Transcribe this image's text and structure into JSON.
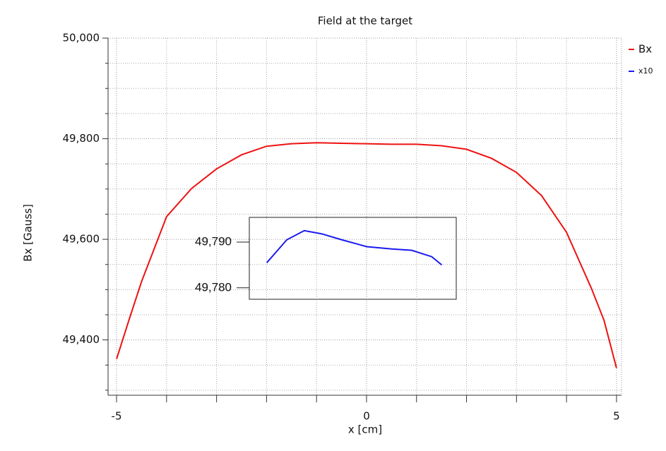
{
  "chart_data": [
    {
      "type": "line",
      "title": "Field at the target",
      "xlabel": "x [cm]",
      "ylabel": "Bx [Gauss]",
      "x": [
        -5,
        -4.75,
        -4.5,
        -4,
        -3.5,
        -3,
        -2.5,
        -2,
        -1.5,
        -1,
        -0.5,
        0,
        0.5,
        1,
        1.5,
        2,
        2.5,
        3,
        3.5,
        4,
        4.5,
        4.75,
        5
      ],
      "series": [
        {
          "name": "Bx",
          "color": "#ee1111",
          "values": [
            49362,
            49440,
            49516,
            49645,
            49701,
            49740,
            49768,
            49785,
            49790,
            49792,
            49791,
            49790,
            49789,
            49789,
            49786,
            49779,
            49761,
            49733,
            49687,
            49614,
            49502,
            49439,
            49344
          ]
        }
      ],
      "xlim": [
        -5.17,
        5.1
      ],
      "xticks": [
        -5,
        0,
        5
      ],
      "xminor": [
        -4,
        -3,
        -2,
        -1,
        1,
        2,
        3,
        4
      ],
      "ylim": [
        49290,
        50000
      ],
      "yticks": [
        {
          "value": 49400,
          "label": "49,400"
        },
        {
          "value": 49600,
          "label": "49,600"
        },
        {
          "value": 49800,
          "label": "49,800"
        },
        {
          "value": 50000,
          "label": "50,000"
        }
      ],
      "yminor": [
        49300,
        49350,
        49450,
        49500,
        49550,
        49650,
        49700,
        49750,
        49850,
        49900,
        49950
      ],
      "grid": true,
      "legend": "right"
    },
    {
      "type": "line",
      "x": [
        -2,
        -1.6,
        -1.25,
        -0.9,
        -0.5,
        0,
        0.5,
        0.9,
        1.3,
        1.5
      ],
      "series": [
        {
          "name": "x10",
          "color": "#1a1aee",
          "values": [
            49785.5,
            49790.5,
            49792.5,
            49791.8,
            49790.5,
            49789,
            49788.5,
            49788.2,
            49786.8,
            49785
          ]
        }
      ],
      "xlim": [
        -2.35,
        1.79
      ],
      "ylim": [
        49777.5,
        49795.4
      ],
      "yticks": [
        {
          "value": 49780,
          "label": "49,780"
        },
        {
          "value": 49790,
          "label": "49,790"
        }
      ],
      "grid": false
    }
  ]
}
